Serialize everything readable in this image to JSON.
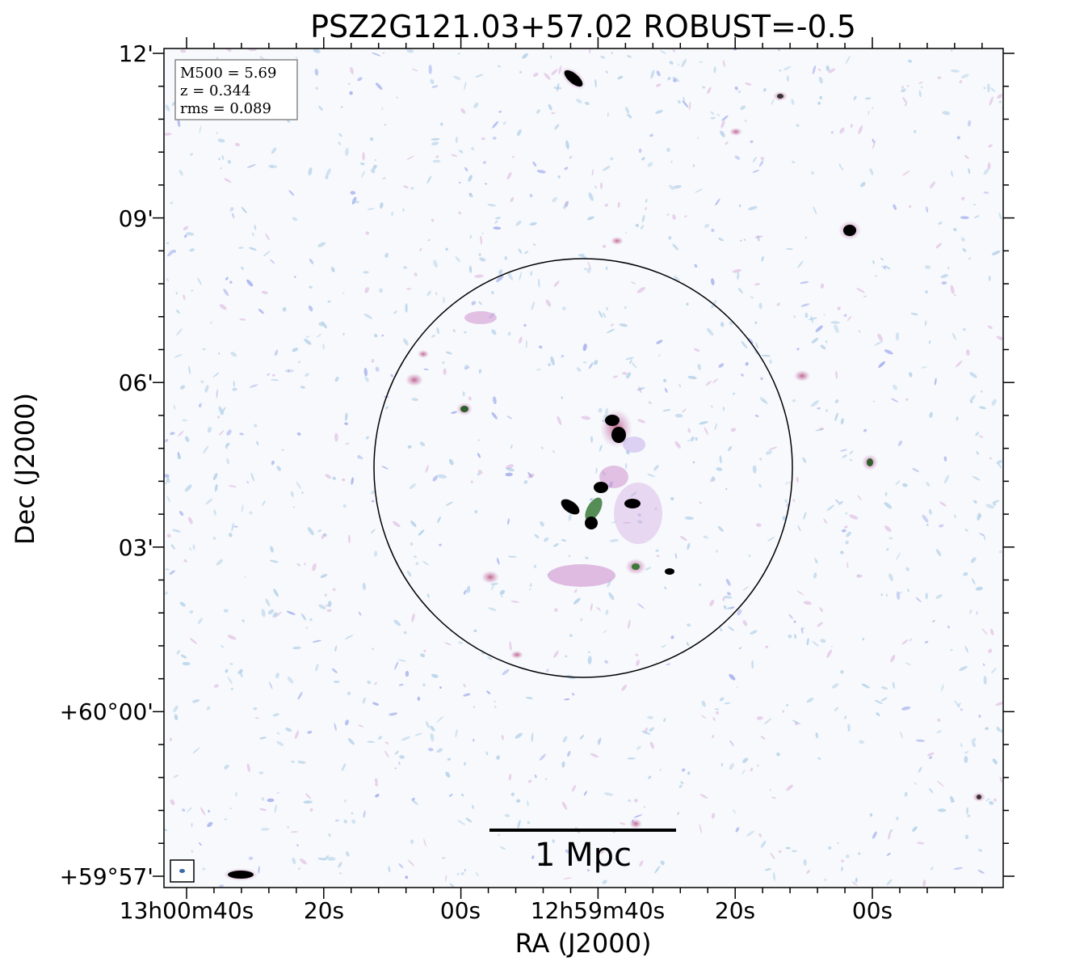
{
  "figure": {
    "title": "PSZ2G121.03+57.02 ROBUST=-0.5",
    "xlabel": "RA (J2000)",
    "ylabel": "Dec (J2000)",
    "ra_ticks": [
      "13h00m40s",
      "20s",
      "00s",
      "12h59m40s",
      "20s",
      "00s"
    ],
    "dec_ticks": [
      "12'",
      "09'",
      "06'",
      "03'",
      "+60°00'",
      "+59°57'"
    ],
    "info_box": {
      "mass": "M500 = 5.69",
      "redshift": "z = 0.344",
      "rms": "rms = 0.089"
    },
    "scale_bar_label": "1 Mpc",
    "colors": {
      "frame": "#000000",
      "noise_light": "#b9d4ea",
      "noise_blue": "#aab4ee",
      "diffuse_pink": "#cc88cc",
      "source_core": "#000000",
      "source_green": "#3a7a3a",
      "source_halo": "#bb5577"
    }
  }
}
